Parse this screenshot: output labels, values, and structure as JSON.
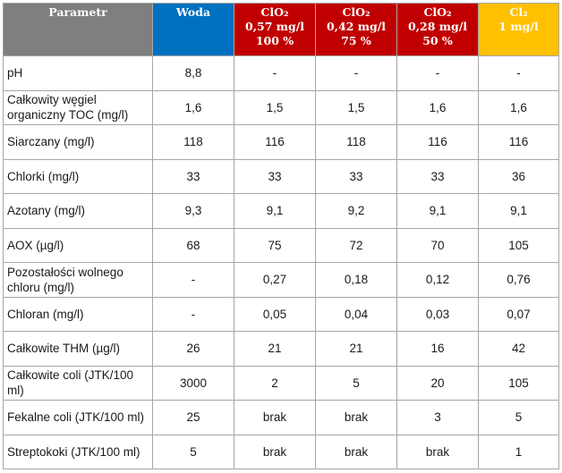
{
  "header": {
    "param": "Parametr",
    "woda": "Woda",
    "clo2_a": [
      "ClO₂",
      "0,57 mg/l",
      "100 %"
    ],
    "clo2_b": [
      "ClO₂",
      "0,42 mg/l",
      "75 %"
    ],
    "clo2_c": [
      "ClO₂",
      "0,28 mg/l",
      "50 %"
    ],
    "cl2": [
      "Cl₂",
      "1 mg/l"
    ]
  },
  "colors": {
    "param_header": "#7f7f7f",
    "woda_header": "#0070c0",
    "clo2_header": "#c00000",
    "cl2_header": "#ffc000"
  },
  "rows": [
    {
      "label": "pH",
      "values": [
        "8,8",
        "-",
        "-",
        "-",
        "-"
      ]
    },
    {
      "label": "Całkowity węgiel organiczny TOC (mg/l)",
      "values": [
        "1,6",
        "1,5",
        "1,5",
        "1,6",
        "1,6"
      ]
    },
    {
      "label": "Siarczany (mg/l)",
      "values": [
        "118",
        "116",
        "118",
        "116",
        "116"
      ]
    },
    {
      "label": "Chlorki (mg/l)",
      "values": [
        "33",
        "33",
        "33",
        "33",
        "36"
      ]
    },
    {
      "label": "Azotany (mg/l)",
      "values": [
        "9,3",
        "9,1",
        "9,2",
        "9,1",
        "9,1"
      ]
    },
    {
      "label": "AOX (µg/l)",
      "values": [
        "68",
        "75",
        "72",
        "70",
        "105"
      ]
    },
    {
      "label": "Pozostałości wolnego chloru (mg/l)",
      "values": [
        "-",
        "0,27",
        "0,18",
        "0,12",
        "0,76"
      ]
    },
    {
      "label": "Chloran (mg/l)",
      "values": [
        "-",
        "0,05",
        "0,04",
        "0,03",
        "0,07"
      ]
    },
    {
      "label": "Całkowite THM (µg/l)",
      "values": [
        "26",
        "21",
        "21",
        "16",
        "42"
      ]
    },
    {
      "label": "Całkowite coli (JTK/100 ml)",
      "values": [
        "3000",
        "2",
        "5",
        "20",
        "105"
      ]
    },
    {
      "label": "Fekalne coli (JTK/100 ml)",
      "values": [
        "25",
        "brak",
        "brak",
        "3",
        "5"
      ]
    },
    {
      "label": "Streptokoki (JTK/100 ml)",
      "values": [
        "5",
        "brak",
        "brak",
        "brak",
        "1"
      ]
    }
  ]
}
